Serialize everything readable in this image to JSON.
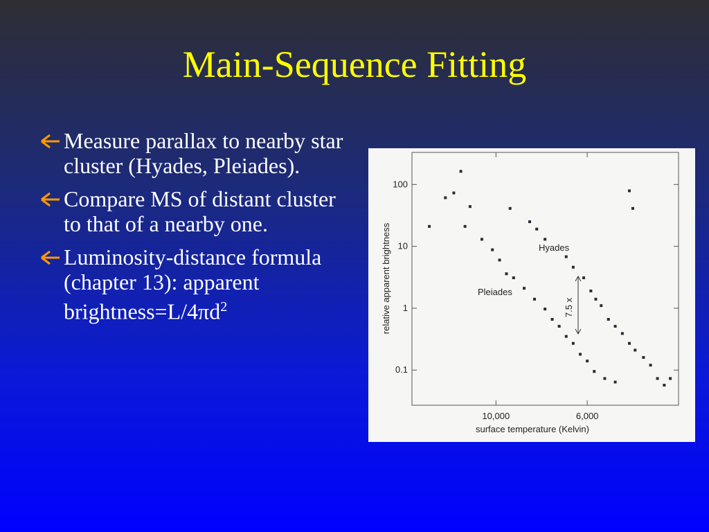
{
  "slide": {
    "title": "Main-Sequence Fitting",
    "bullets": [
      {
        "text": "Measure parallax to nearby star cluster (Hyades, Pleiades)."
      },
      {
        "text": "Compare MS of distant cluster to that of a nearby one."
      },
      {
        "text": "Luminosity-distance formula (chapter 13): apparent brightness=L/4πd",
        "sup": "2"
      }
    ]
  },
  "chart_data": {
    "type": "scatter",
    "xlabel": "surface temperature (Kelvin)",
    "ylabel": "relative apparent brightness",
    "annotation": "7.5 x",
    "xscale": "log",
    "yscale": "log",
    "xlim": [
      16000,
      3600
    ],
    "ylim": [
      0.027,
      330
    ],
    "xticks": [
      {
        "value": 10000,
        "label": "10,000"
      },
      {
        "value": 6000,
        "label": "6,000"
      }
    ],
    "yticks": [
      100,
      10,
      1,
      0.1
    ],
    "grid": false,
    "series": [
      {
        "name": "Hyades",
        "color": "#2b2b35",
        "x": [
          12170,
          13270,
          12660,
          11560,
          11890,
          9240,
          8280,
          7960,
          7600,
          7450,
          6750,
          6490,
          6120,
          5880,
          5720,
          5550,
          5330,
          5130,
          4930,
          4740,
          4590,
          4380,
          4210,
          4740,
          4650
        ],
        "values": [
          163,
          61,
          73,
          44,
          21,
          41,
          25,
          19,
          13,
          10,
          6.8,
          4.6,
          3.1,
          1.9,
          1.4,
          1.1,
          0.66,
          0.51,
          0.39,
          0.27,
          0.21,
          0.16,
          0.12,
          79,
          41
        ]
      },
      {
        "name": "Pleiades",
        "color": "#2b2b35",
        "x": [
          14520,
          10820,
          10200,
          9800,
          9430,
          9060,
          8540,
          8060,
          7600,
          7300,
          7020,
          6750,
          6490,
          6240,
          6000,
          5770,
          5440,
          5130,
          4050,
          3900,
          3770
        ],
        "values": [
          21,
          13,
          8.8,
          6.0,
          3.6,
          3.1,
          2.1,
          1.4,
          0.97,
          0.66,
          0.51,
          0.35,
          0.27,
          0.18,
          0.14,
          0.095,
          0.073,
          0.064,
          0.073,
          0.057,
          0.073
        ]
      }
    ]
  }
}
